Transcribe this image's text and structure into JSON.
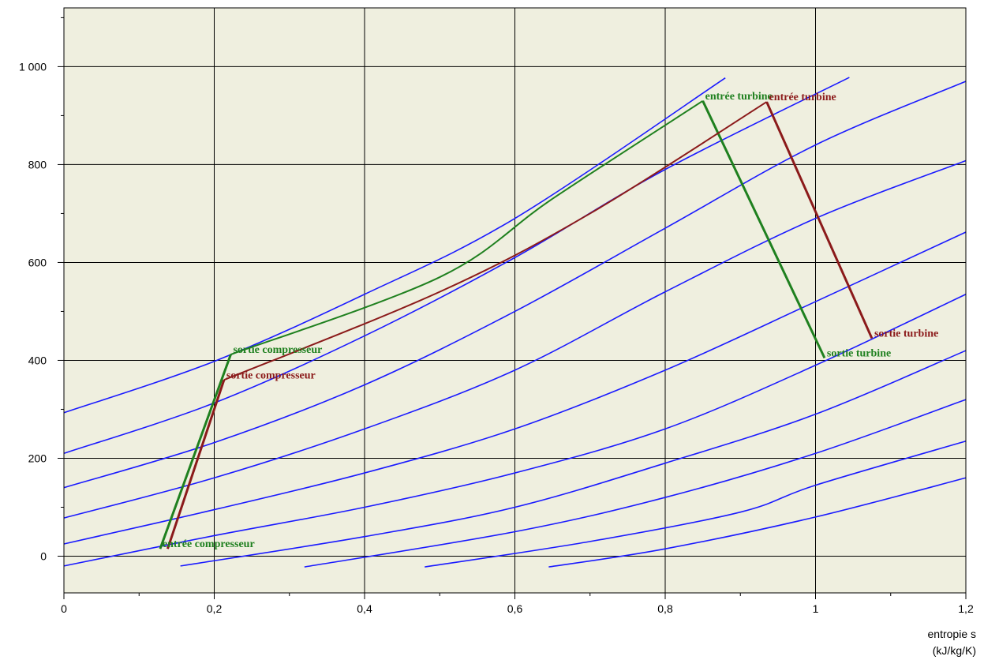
{
  "chart_data": {
    "type": "line",
    "xlabel_line1": "entropie  s",
    "xlabel_line2": "(kJ/kg/K)",
    "xlim": [
      0,
      1.2
    ],
    "ylim": [
      -75,
      1120
    ],
    "grid": true,
    "colors": {
      "background": "#efefdf",
      "grid": "#000000",
      "isobar": "#1a1aff",
      "cycle_green": "#1f801f",
      "cycle_red": "#8b1a1a"
    },
    "x_ticks": [
      {
        "value": 0,
        "label": "0"
      },
      {
        "value": 0.2,
        "label": "0,2"
      },
      {
        "value": 0.4,
        "label": "0,4"
      },
      {
        "value": 0.6,
        "label": "0,6"
      },
      {
        "value": 0.8,
        "label": "0,8"
      },
      {
        "value": 1.0,
        "label": "1"
      },
      {
        "value": 1.2,
        "label": "1,2"
      }
    ],
    "y_ticks": [
      {
        "value": 0,
        "label": "0"
      },
      {
        "value": 200,
        "label": "200"
      },
      {
        "value": 400,
        "label": "400"
      },
      {
        "value": 600,
        "label": "600"
      },
      {
        "value": 800,
        "label": "800"
      },
      {
        "value": 1000,
        "label": "1 000"
      }
    ],
    "isobars": [
      [
        [
          0,
          293
        ],
        [
          0.2,
          398
        ],
        [
          0.4,
          535
        ],
        [
          0.6,
          690
        ],
        [
          0.88,
          977
        ]
      ],
      [
        [
          0,
          210
        ],
        [
          0.2,
          313
        ],
        [
          0.4,
          450
        ],
        [
          0.6,
          610
        ],
        [
          0.8,
          790
        ],
        [
          1.045,
          978
        ]
      ],
      [
        [
          0,
          140
        ],
        [
          0.2,
          232
        ],
        [
          0.4,
          350
        ],
        [
          0.6,
          500
        ],
        [
          0.8,
          670
        ],
        [
          1.0,
          840
        ],
        [
          1.2,
          970
        ]
      ],
      [
        [
          0,
          78
        ],
        [
          0.2,
          160
        ],
        [
          0.4,
          260
        ],
        [
          0.6,
          380
        ],
        [
          0.8,
          540
        ],
        [
          1.0,
          690
        ],
        [
          1.2,
          808
        ]
      ],
      [
        [
          0,
          25
        ],
        [
          0.2,
          95
        ],
        [
          0.4,
          170
        ],
        [
          0.6,
          260
        ],
        [
          0.8,
          380
        ],
        [
          1.0,
          520
        ],
        [
          1.2,
          662
        ]
      ],
      [
        [
          0,
          -20
        ],
        [
          0.2,
          42
        ],
        [
          0.4,
          100
        ],
        [
          0.6,
          170
        ],
        [
          0.8,
          260
        ],
        [
          1.0,
          390
        ],
        [
          1.2,
          535
        ]
      ],
      [
        [
          0.155,
          -20
        ],
        [
          0.4,
          40
        ],
        [
          0.6,
          100
        ],
        [
          0.8,
          190
        ],
        [
          1.0,
          290
        ],
        [
          1.2,
          420
        ]
      ],
      [
        [
          0.32,
          -22
        ],
        [
          0.6,
          50
        ],
        [
          0.8,
          120
        ],
        [
          1.0,
          210
        ],
        [
          1.2,
          320
        ]
      ],
      [
        [
          0.48,
          -22
        ],
        [
          0.7,
          30
        ],
        [
          0.9,
          90
        ],
        [
          1.0,
          145
        ],
        [
          1.2,
          235
        ]
      ],
      [
        [
          0.645,
          -22
        ],
        [
          0.8,
          15
        ],
        [
          1.0,
          80
        ],
        [
          1.2,
          160
        ]
      ]
    ],
    "series": [
      {
        "color_key": "cycle_green",
        "points": [
          [
            0.128,
            15
          ],
          [
            0.222,
            412
          ],
          [
            0.5,
            570
          ],
          [
            0.65,
            730
          ],
          [
            0.85,
            930
          ],
          [
            1.012,
            405
          ]
        ],
        "labels": [
          {
            "text": "entrée compresseur",
            "at": [
              0.128,
              15
            ]
          },
          {
            "text": "sortie compresseur",
            "at": [
              0.222,
              412
            ]
          },
          {
            "text": "entrée turbine",
            "at": [
              0.85,
              930
            ]
          },
          {
            "text": "sortie turbine",
            "at": [
              1.012,
              405
            ]
          }
        ]
      },
      {
        "color_key": "cycle_red",
        "points": [
          [
            0.138,
            15
          ],
          [
            0.213,
            360
          ],
          [
            0.5,
            540
          ],
          [
            0.7,
            700
          ],
          [
            0.935,
            928
          ],
          [
            1.075,
            445
          ]
        ],
        "labels": [
          {
            "text": "sortie compresseur",
            "at": [
              0.213,
              360
            ]
          },
          {
            "text": "entrée turbine",
            "at": [
              0.935,
              928
            ]
          },
          {
            "text": "sortie turbine",
            "at": [
              1.075,
              445
            ]
          }
        ]
      }
    ]
  }
}
